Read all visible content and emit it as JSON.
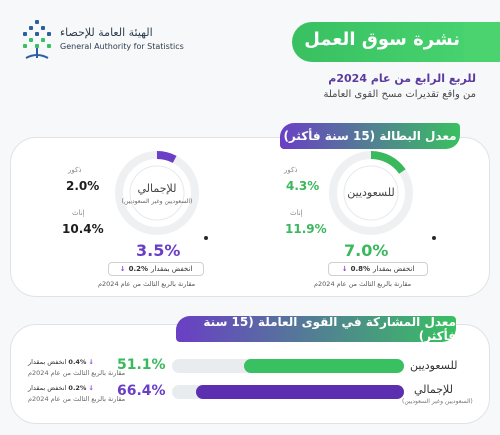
{
  "header": {
    "logo_ar": "الهيئة العامة للإحصاء",
    "logo_en": "General Authority for Statistics",
    "title": "نشرة سوق العمل",
    "subtitle_1": "للربع الرابع من عام 2024م",
    "subtitle_2": "من واقع تقديرات مسح القوى العاملة"
  },
  "unemployment": {
    "tag": "معدل البطالة (15 سنة فأكثر)",
    "saudi": {
      "label": "للسعوديين",
      "male_label": "ذكور",
      "male_value": "4.3%",
      "female_label": "إناث",
      "female_value": "11.9%",
      "total": "7.0%",
      "total_fraction": 0.07,
      "decrease_text": "انخفض بمقدار",
      "decrease_value": "0.8%",
      "note": "مقارنة بالربع الثالث من عام 2024م",
      "color": "#39b85d"
    },
    "overall": {
      "label": "للإجمالي",
      "sub": "(السعوديين وغير السعوديين)",
      "male_label": "ذكور",
      "male_value": "2.0%",
      "female_label": "إناث",
      "female_value": "10.4%",
      "total": "3.5%",
      "total_fraction": 0.035,
      "decrease_text": "انخفض بمقدار",
      "decrease_value": "0.2%",
      "note": "مقارنة بالربع الثالث من عام 2024م",
      "color": "#6a3fc5"
    }
  },
  "participation": {
    "tag": "معدل المشاركة في القوى العاملة (15 سنة فأكثر)",
    "saudi": {
      "label": "للسعوديين",
      "value": "51.1%",
      "fraction": 0.511,
      "decrease_text": "انخفض بمقدار",
      "decrease_value": "0.4%",
      "note": "مقارنة بالربع الثالث من عام 2024م",
      "color": "#39c061"
    },
    "overall": {
      "label": "للإجمالي",
      "sub": "(السعوديين وغير السعوديين)",
      "value": "66.4%",
      "fraction": 0.664,
      "decrease_text": "انخفض بمقدار",
      "decrease_value": "0.2%",
      "note": "مقارنة بالربع الثالث من عام 2024م",
      "color": "#6a3fc5"
    }
  },
  "icons": {
    "down_arrow": "↓"
  }
}
